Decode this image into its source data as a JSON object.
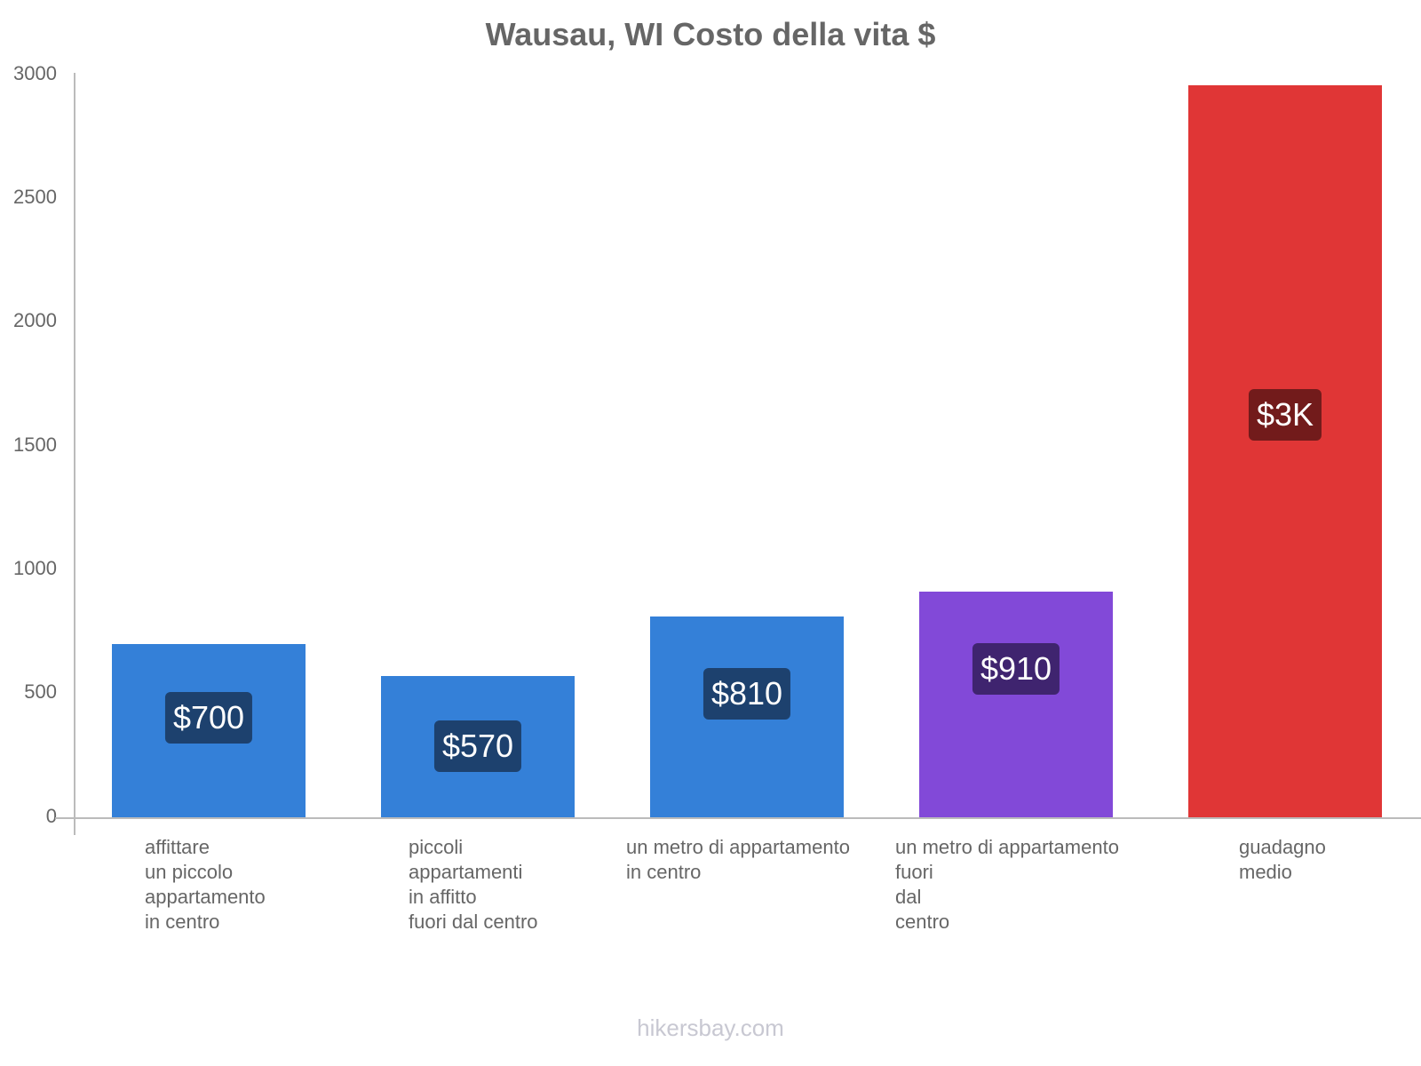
{
  "chart_data": {
    "type": "bar",
    "title": "Wausau, WI Costo della vita $",
    "xlabel": "",
    "ylabel": "",
    "ylim": [
      0,
      3000
    ],
    "yticks": [
      0,
      500,
      1000,
      1500,
      2000,
      2500,
      3000
    ],
    "grid": false,
    "legend": "none",
    "categories": [
      "affittare un piccolo appartamento in centro",
      "piccoli appartamenti in affitto fuori dal centro",
      "un metro di appartamento in centro",
      "un metro di appartamento fuori dal centro",
      "guadagno medio"
    ],
    "values": [
      700,
      570,
      810,
      910,
      2956
    ],
    "data_labels": [
      "$700",
      "$570",
      "$810",
      "$910",
      "$3K"
    ],
    "colors": [
      "#3480d8",
      "#3480d8",
      "#3480d8",
      "#8249d8",
      "#e03636"
    ],
    "label_colors": [
      "#1d416e",
      "#1d416e",
      "#1d416e",
      "#3f246f",
      "#721b1b"
    ]
  },
  "labels": {
    "title": "Wausau, WI Costo della vita $",
    "yticks": [
      "0",
      "500",
      "1000",
      "1500",
      "2000",
      "2500",
      "3000"
    ],
    "x": [
      "affittare\nun piccolo\nappartamento\nin centro",
      "piccoli\nappartamenti\nin affitto\nfuori dal centro",
      "un metro di appartamento\nin centro",
      "un metro di appartamento\nfuori\ndal\ncentro",
      "guadagno\nmedio"
    ],
    "bars": [
      "$700",
      "$570",
      "$810",
      "$910",
      "$3K"
    ],
    "footer": "hikersbay.com"
  }
}
